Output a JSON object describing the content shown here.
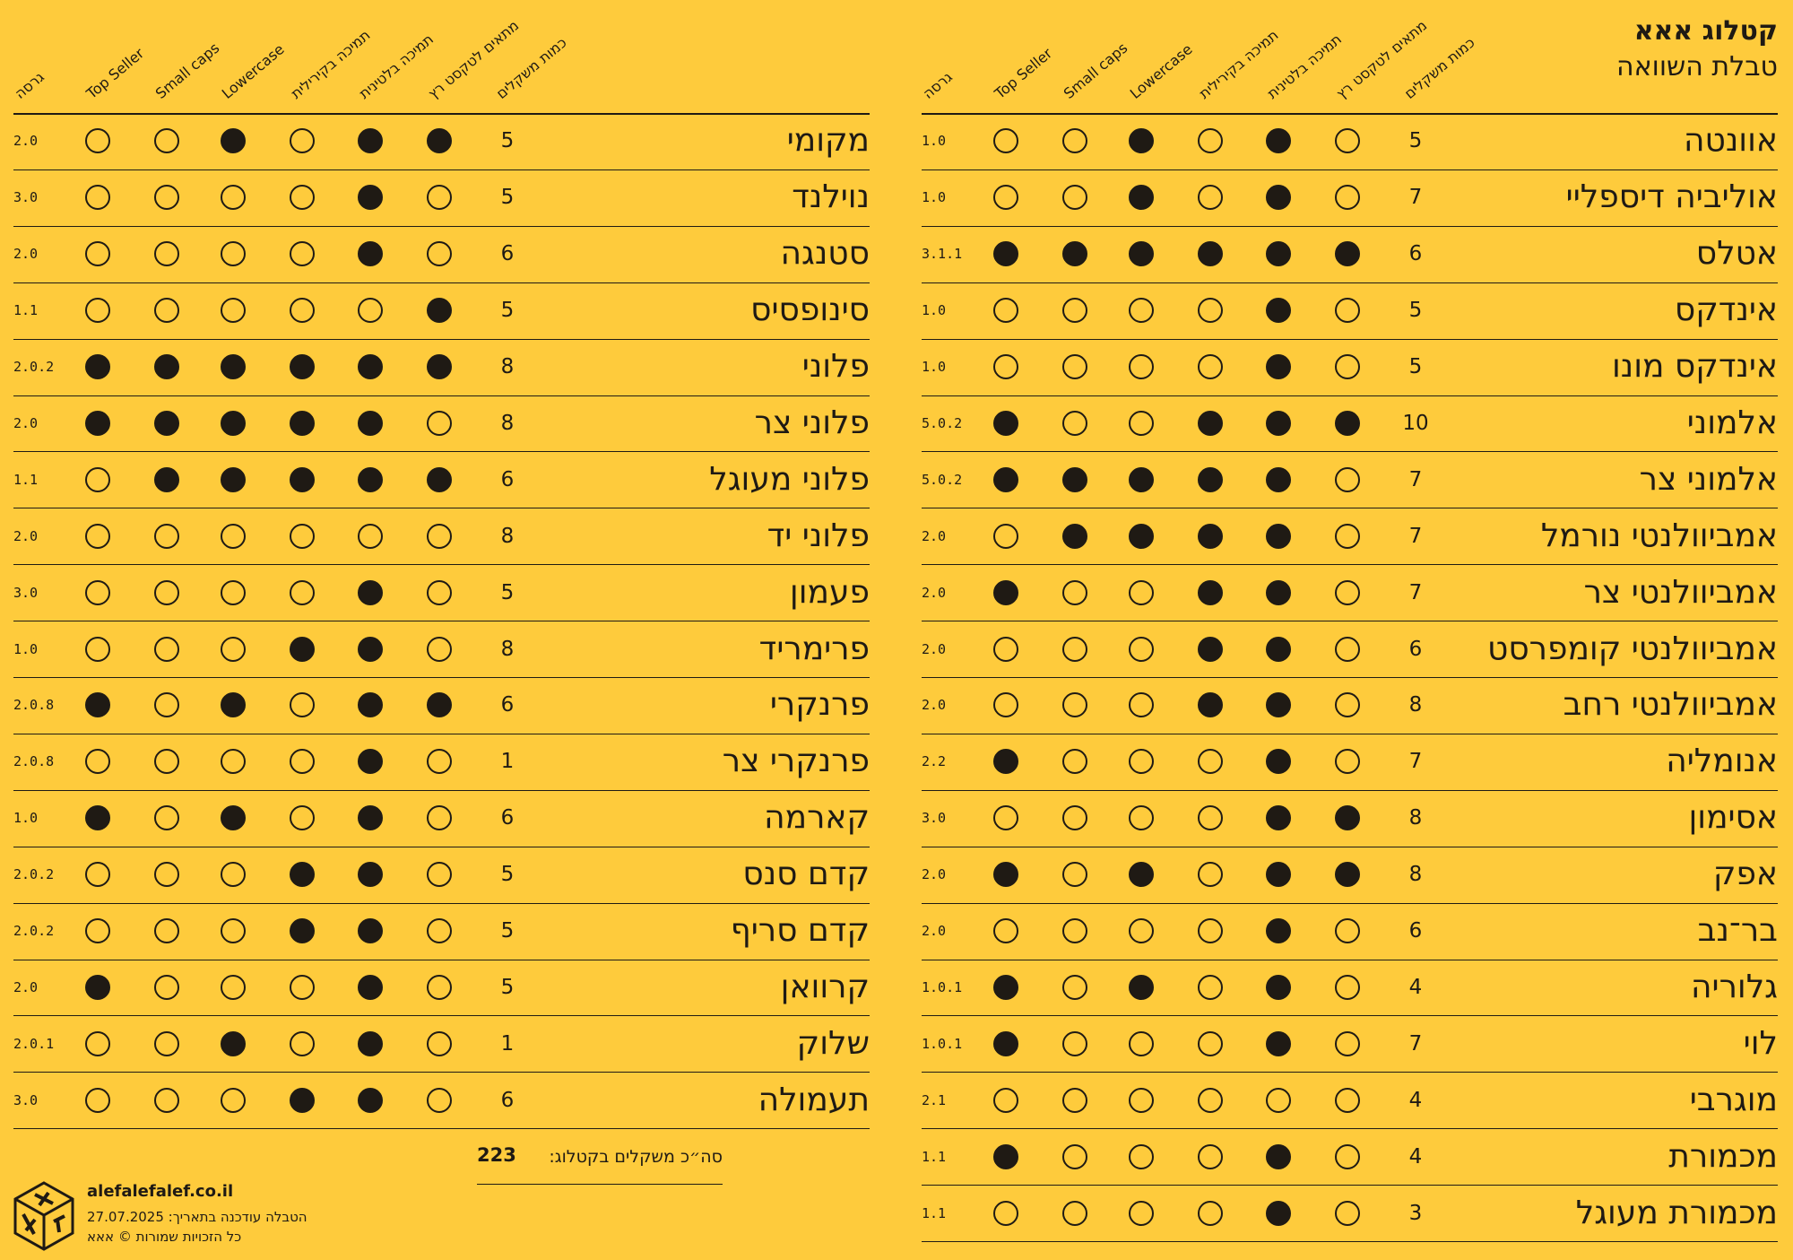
{
  "header": {
    "title": "קטלוג אאא",
    "subtitle": "טבלת השוואה"
  },
  "columns": {
    "weights": "כמות משקלים",
    "running_text": "מתאים לטקסט רץ",
    "latin": "תמיכה בלטינית",
    "cyrillic": "תמיכה בקירילית",
    "lowercase": "Lowercase",
    "small_caps": "Small caps",
    "top_seller": "Top Seller",
    "version": "גרסה"
  },
  "tables": [
    {
      "rows": [
        [
          "אוונטה",
          5,
          false,
          true,
          false,
          true,
          false,
          false,
          "1.0"
        ],
        [
          "אוליביה דיספליי",
          7,
          false,
          true,
          false,
          true,
          false,
          false,
          "1.0"
        ],
        [
          "אטלס",
          6,
          true,
          true,
          true,
          true,
          true,
          true,
          "3.1.1"
        ],
        [
          "אינדקס",
          5,
          false,
          true,
          false,
          false,
          false,
          false,
          "1.0"
        ],
        [
          "אינדקס מונו",
          5,
          false,
          true,
          false,
          false,
          false,
          false,
          "1.0"
        ],
        [
          "אלמוני",
          10,
          true,
          true,
          true,
          false,
          false,
          true,
          "5.0.2"
        ],
        [
          "אלמוני צר",
          7,
          false,
          true,
          true,
          true,
          true,
          true,
          "5.0.2"
        ],
        [
          "אמביוולנטי נורמל",
          7,
          false,
          true,
          true,
          true,
          true,
          false,
          "2.0"
        ],
        [
          "אמביוולנטי צר",
          7,
          false,
          true,
          true,
          false,
          false,
          true,
          "2.0"
        ],
        [
          "אמביוולנטי קומפרסט",
          6,
          false,
          true,
          true,
          false,
          false,
          false,
          "2.0"
        ],
        [
          "אמביוולנטי רחב",
          8,
          false,
          true,
          true,
          false,
          false,
          false,
          "2.0"
        ],
        [
          "אנומליה",
          7,
          false,
          true,
          false,
          false,
          false,
          true,
          "2.2"
        ],
        [
          "אסימון",
          8,
          true,
          true,
          false,
          false,
          false,
          false,
          "3.0"
        ],
        [
          "אפק",
          8,
          true,
          true,
          false,
          true,
          false,
          true,
          "2.0"
        ],
        [
          "בר־נב",
          6,
          false,
          true,
          false,
          false,
          false,
          false,
          "2.0"
        ],
        [
          "גלוריה",
          4,
          false,
          true,
          false,
          true,
          false,
          true,
          "1.0.1"
        ],
        [
          "לוי",
          7,
          false,
          true,
          false,
          false,
          false,
          true,
          "1.0.1"
        ],
        [
          "מוגרבי",
          4,
          false,
          false,
          false,
          false,
          false,
          false,
          "2.1"
        ],
        [
          "מכמורת",
          4,
          false,
          true,
          false,
          false,
          false,
          true,
          "1.1"
        ],
        [
          "מכמורת מעוגל",
          3,
          false,
          true,
          false,
          false,
          false,
          false,
          "1.1"
        ]
      ]
    },
    {
      "rows": [
        [
          "מקומי",
          5,
          true,
          true,
          false,
          true,
          false,
          false,
          "2.0"
        ],
        [
          "נוילנד",
          5,
          false,
          true,
          false,
          false,
          false,
          false,
          "3.0"
        ],
        [
          "סטנגה",
          6,
          false,
          true,
          false,
          false,
          false,
          false,
          "2.0"
        ],
        [
          "סינופסיס",
          5,
          true,
          false,
          false,
          false,
          false,
          false,
          "1.1"
        ],
        [
          "פלוני",
          8,
          true,
          true,
          true,
          true,
          true,
          true,
          "2.0.2"
        ],
        [
          "פלוני צר",
          8,
          false,
          true,
          true,
          true,
          true,
          true,
          "2.0"
        ],
        [
          "פלוני מעוגל",
          6,
          true,
          true,
          true,
          true,
          true,
          false,
          "1.1"
        ],
        [
          "פלוני יד",
          8,
          false,
          false,
          false,
          false,
          false,
          false,
          "2.0"
        ],
        [
          "פעמון",
          5,
          false,
          true,
          false,
          false,
          false,
          false,
          "3.0"
        ],
        [
          "פרימריד",
          8,
          false,
          true,
          true,
          false,
          false,
          false,
          "1.0"
        ],
        [
          "פרנקרי",
          6,
          true,
          true,
          false,
          true,
          false,
          true,
          "2.0.8"
        ],
        [
          "פרנקרי צר",
          1,
          false,
          true,
          false,
          false,
          false,
          false,
          "2.0.8"
        ],
        [
          "קארמה",
          6,
          false,
          true,
          false,
          true,
          false,
          true,
          "1.0"
        ],
        [
          "קדם סנס",
          5,
          false,
          true,
          true,
          false,
          false,
          false,
          "2.0.2"
        ],
        [
          "קדם סריף",
          5,
          false,
          true,
          true,
          false,
          false,
          false,
          "2.0.2"
        ],
        [
          "קרוואן",
          5,
          false,
          true,
          false,
          false,
          false,
          true,
          "2.0"
        ],
        [
          "שלוק",
          1,
          false,
          true,
          false,
          true,
          false,
          false,
          "2.0.1"
        ],
        [
          "תעמולה",
          6,
          false,
          true,
          true,
          false,
          false,
          false,
          "3.0"
        ]
      ]
    }
  ],
  "total": {
    "label": "סה״כ משקלים בקטלוג:",
    "value": 223
  },
  "footer": {
    "site": "alefalefalef.co.il",
    "updated": "הטבלה עודכנה בתאריך: 27.07.2025",
    "rights": "כל הזכויות שמורות © אאא"
  }
}
